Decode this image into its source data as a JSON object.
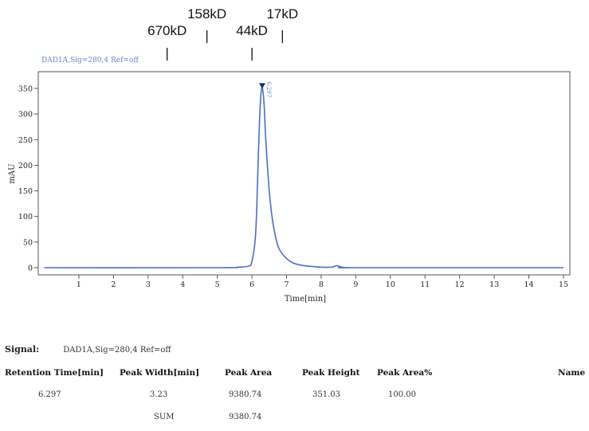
{
  "markers": [
    {
      "label": "670kD",
      "x": 3.55
    },
    {
      "label": "158kD",
      "x": 4.7
    },
    {
      "label": "44kD",
      "x": 6.0
    },
    {
      "label": "17kD",
      "x": 6.88
    }
  ],
  "signal_label": "DAD1A,Sig=280,4  Ref=off",
  "peak_label": "6.297",
  "chart_data": {
    "type": "line",
    "xlabel": "Time[min]",
    "ylabel": "mAU",
    "xlim": [
      0,
      15
    ],
    "ylim": [
      -5,
      370
    ],
    "xticks": [
      1,
      2,
      3,
      4,
      5,
      6,
      7,
      8,
      9,
      10,
      11,
      12,
      13,
      14,
      15
    ],
    "yticks": [
      0,
      50,
      100,
      150,
      200,
      250,
      300,
      350
    ],
    "grid": false,
    "series": [
      {
        "color": "#4a6fc0",
        "x": [
          0.0,
          5.0,
          5.6,
          5.9,
          6.0,
          6.1,
          6.15,
          6.2,
          6.25,
          6.297,
          6.35,
          6.4,
          6.5,
          6.6,
          6.7,
          6.8,
          7.0,
          7.2,
          7.5,
          7.8,
          8.0,
          8.3,
          8.45,
          8.6,
          8.8,
          9.0,
          15.0
        ],
        "y": [
          0,
          0,
          1,
          3,
          12,
          60,
          140,
          250,
          330,
          351,
          320,
          250,
          150,
          90,
          55,
          35,
          18,
          9,
          4,
          2,
          1,
          1,
          4,
          1,
          0,
          0,
          0
        ]
      }
    ]
  },
  "table": {
    "signal_title": "Signal:",
    "signal_value": "DAD1A,Sig=280,4  Ref=off",
    "headers": [
      "Retention Time[min]",
      "Peak Width[min]",
      "Peak Area",
      "Peak Height",
      "Peak Area%",
      "Name"
    ],
    "row": [
      "6.297",
      "3.23",
      "9380.74",
      "351.03",
      "100.00"
    ],
    "sum_label": "SUM",
    "sum_value": "9380.74"
  }
}
